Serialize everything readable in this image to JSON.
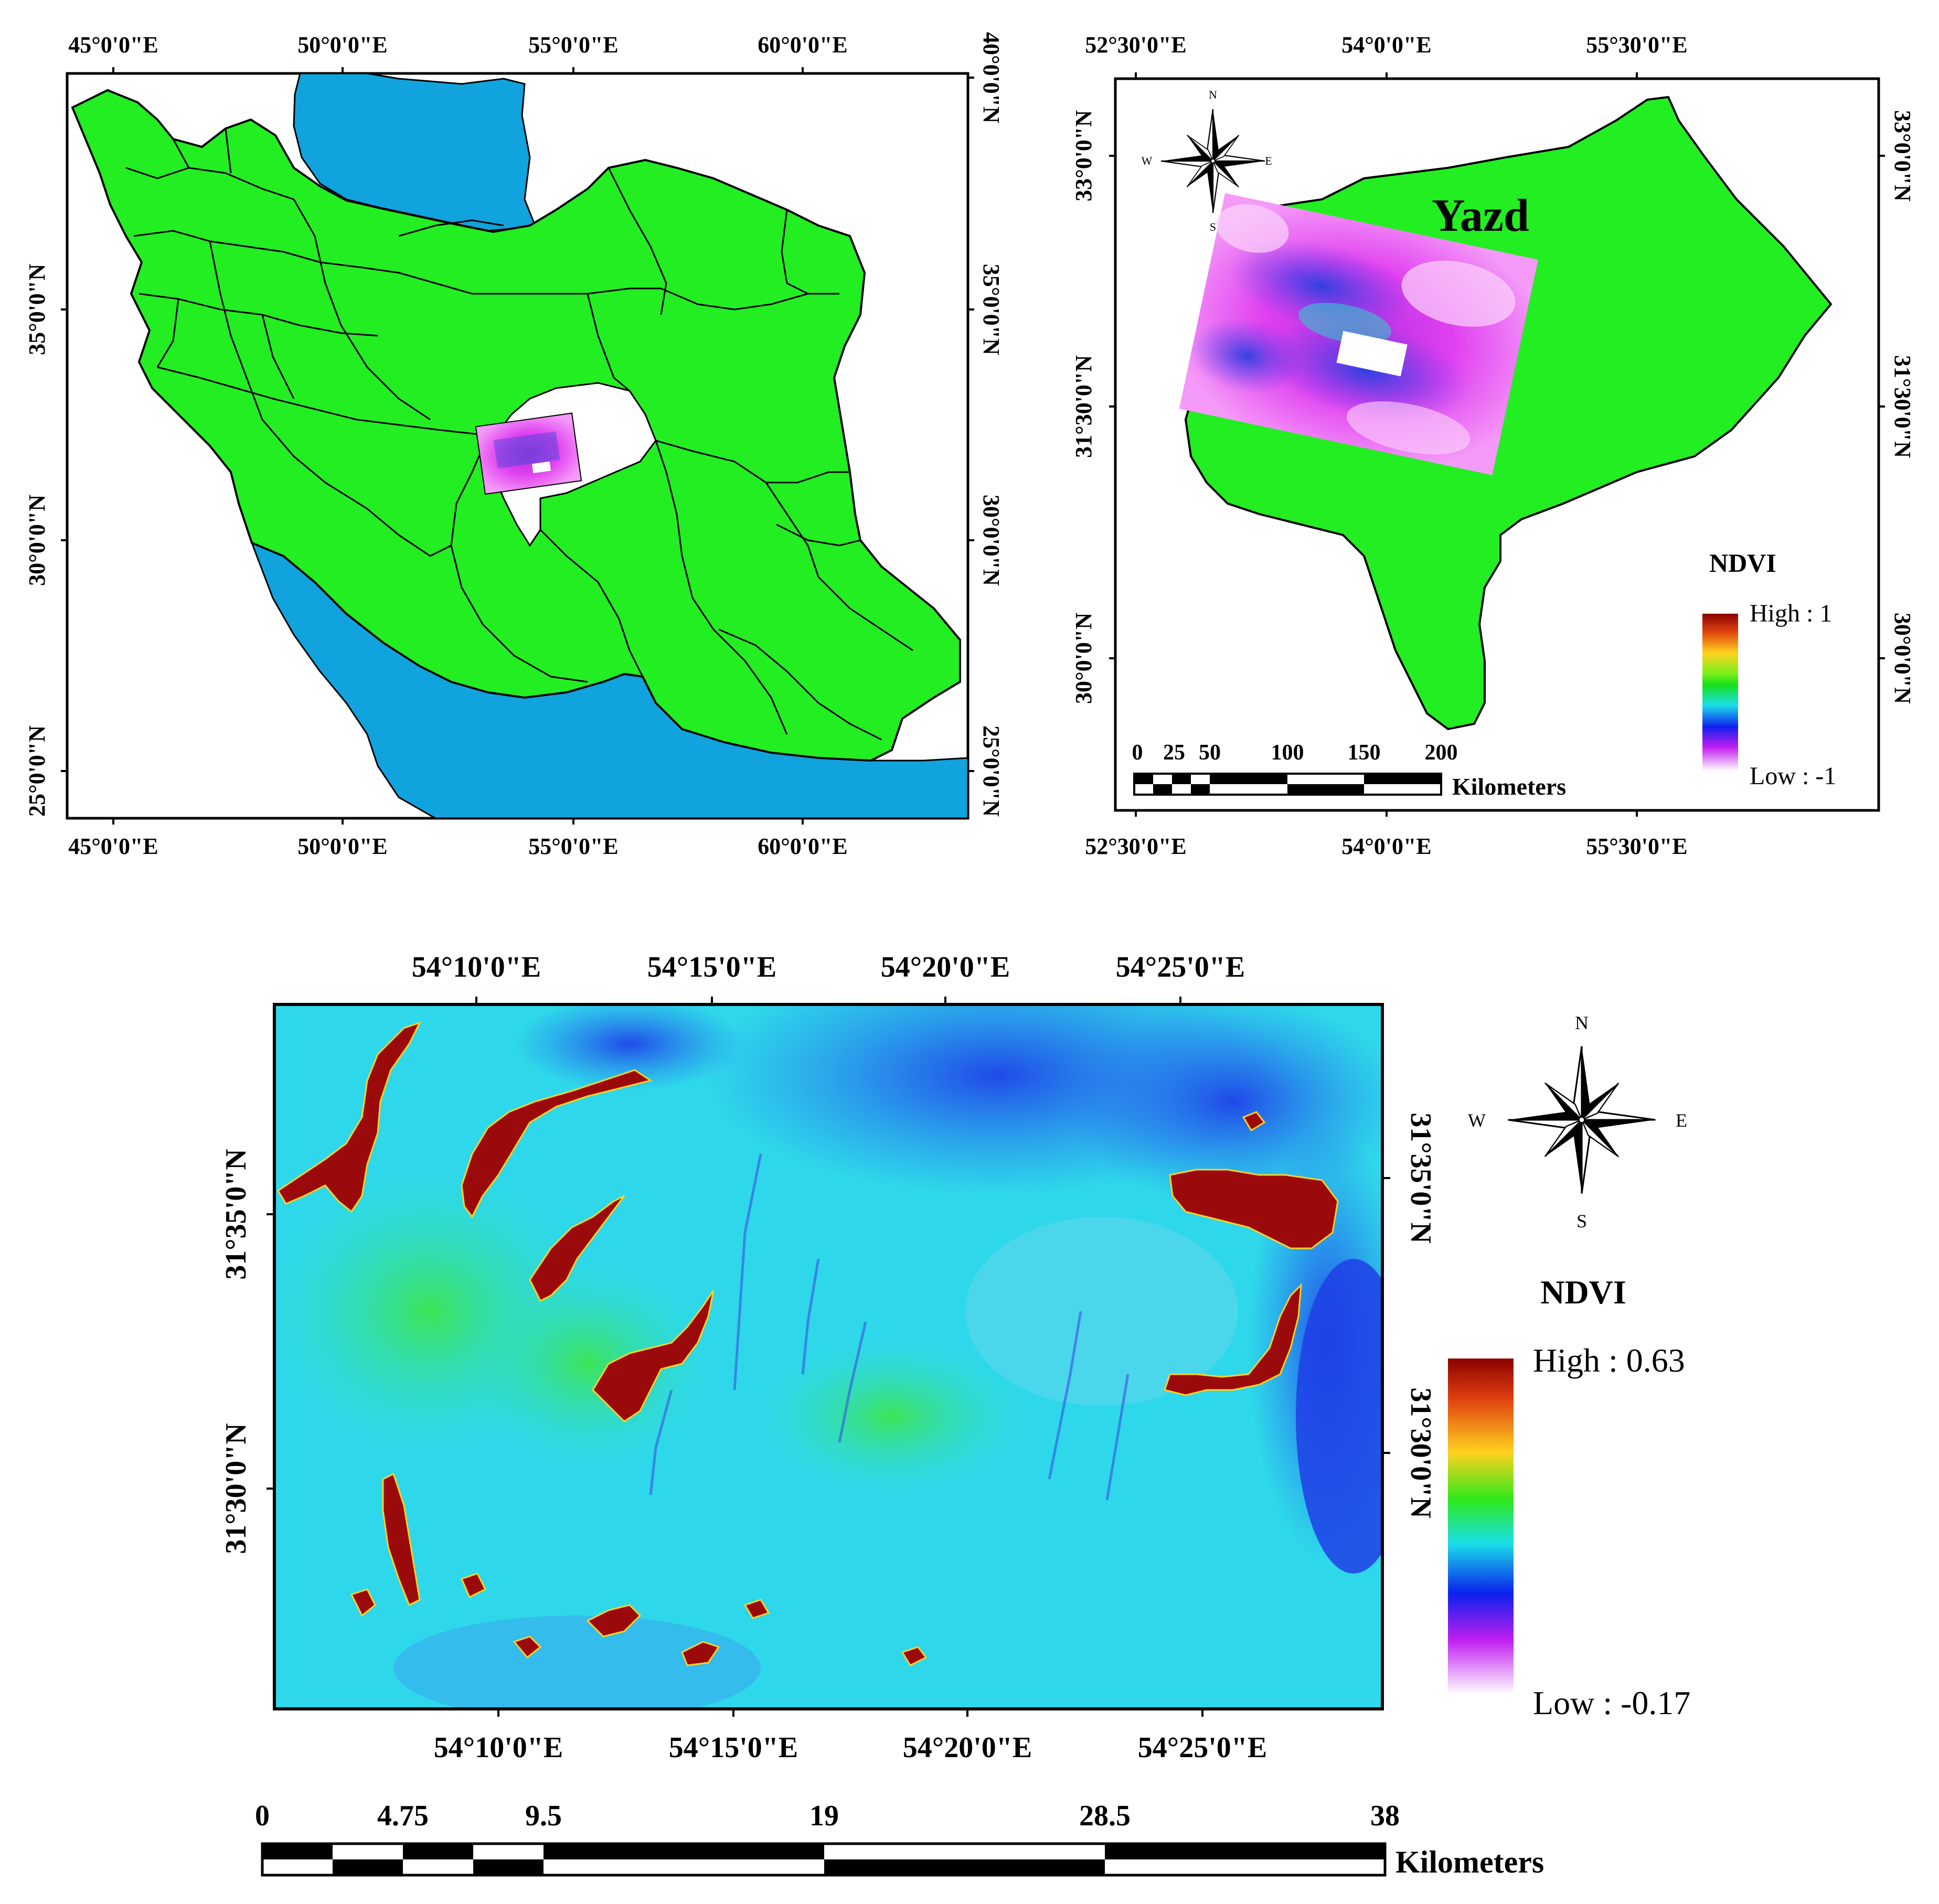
{
  "panel_iran": {
    "lon_ticks_top": [
      "45°0'0\"E",
      "50°0'0\"E",
      "55°0'0\"E",
      "60°0'0\"E"
    ],
    "lon_ticks_bottom": [
      "45°0'0\"E",
      "50°0'0\"E",
      "55°0'0\"E",
      "60°0'0\"E"
    ],
    "lat_ticks_left": [
      "35°0'0\"N",
      "30°0'0\"N",
      "25°0'0\"N"
    ],
    "lat_ticks_right": [
      "40°0'0\"N",
      "35°0'0\"N",
      "30°0'0\"N",
      "25°0'0\"N"
    ]
  },
  "panel_yazd": {
    "province_label": "Yazd",
    "lon_ticks_top": [
      "52°30'0\"E",
      "54°0'0\"E",
      "55°30'0\"E"
    ],
    "lon_ticks_bottom": [
      "52°30'0\"E",
      "54°0'0\"E",
      "55°30'0\"E"
    ],
    "lat_ticks_left": [
      "33°0'0\"N",
      "31°30'0\"N",
      "30°0'0\"N"
    ],
    "lat_ticks_right": [
      "33°0'0\"N",
      "31°30'0\"N",
      "30°0'0\"N"
    ],
    "compass": {
      "n": "N",
      "s": "S",
      "e": "E",
      "w": "W"
    },
    "scale_bar": {
      "ticks": [
        "0",
        "25",
        "50",
        "100",
        "150",
        "200"
      ],
      "unit": "Kilometers"
    },
    "legend": {
      "title": "NDVI",
      "high": "High : 1",
      "low": "Low : -1"
    }
  },
  "panel_detail": {
    "lon_ticks_top": [
      "54°10'0\"E",
      "54°15'0\"E",
      "54°20'0\"E",
      "54°25'0\"E"
    ],
    "lon_ticks_bottom": [
      "54°10'0\"E",
      "54°15'0\"E",
      "54°20'0\"E",
      "54°25'0\"E"
    ],
    "lat_ticks_left": [
      "31°35'0\"N",
      "31°30'0\"N"
    ],
    "lat_ticks_right": [
      "31°35'0\"N",
      "31°30'0\"N"
    ],
    "compass": {
      "n": "N",
      "s": "S",
      "e": "E",
      "w": "W"
    },
    "legend": {
      "title": "NDVI",
      "high": "High : 0.63",
      "low": "Low : -0.17"
    },
    "scale_bar": {
      "ticks": [
        "0",
        "4.75",
        "9.5",
        "19",
        "28.5",
        "38"
      ],
      "unit": "Kilometers"
    }
  },
  "colors": {
    "land": "#22ee22",
    "water": "#11a3dd",
    "ndvi_high": "#9b0a0a",
    "ndvi_mid": "#18e018",
    "ndvi_low_blue": "#1a3fe0",
    "ndvi_low": "#ffffff"
  },
  "icons": [
    "compass-rose-icon"
  ]
}
